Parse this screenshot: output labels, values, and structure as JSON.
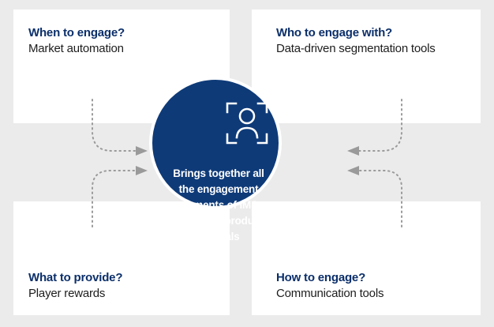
{
  "cards": [
    {
      "title": "When to engage?",
      "subtitle": "Market automation"
    },
    {
      "title": "Who to engage with?",
      "subtitle": "Data-driven segmentation tools"
    },
    {
      "title": "What to provide?",
      "subtitle": "Player rewards"
    },
    {
      "title": "How to engage?",
      "subtitle": "Communication tools"
    }
  ],
  "hub": {
    "icon": "face-scan-icon",
    "text_lines": [
      "Brings together all",
      "the engagement",
      "elements of IMS",
      "across all product",
      "verticals"
    ]
  },
  "colors": {
    "background": "#ebebeb",
    "card": "#ffffff",
    "hub": "#0e3a78",
    "title": "#0b2f6a",
    "connector": "#9a9a9a"
  }
}
